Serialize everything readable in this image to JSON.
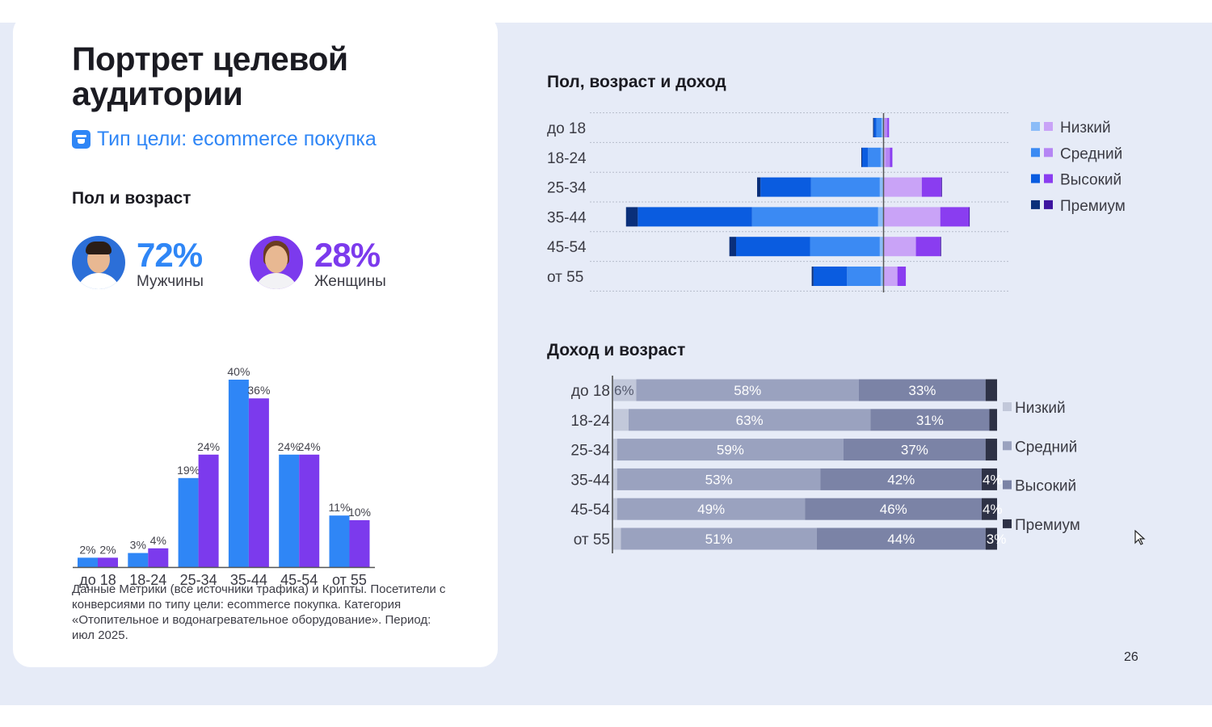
{
  "card": {
    "title": "Портрет целевой аудитории",
    "goal": "Тип цели: ecommerce покупка",
    "section_title": "Пол и возраст",
    "men": {
      "pct": "72%",
      "label": "Мужчины"
    },
    "women": {
      "pct": "28%",
      "label": "Женщины"
    },
    "note": "Данные Метрики (все источники трафика) и Крипты. Посетители с конверсиями по типу цели: ecommerce покупка. Категория «Отопительное и водонагревательное оборудование». Период: июл 2025."
  },
  "colors": {
    "men": "#2f86f6",
    "women": "#7c3aed",
    "bg": "#e6ebf7"
  },
  "page_number": "26",
  "chart_data": [
    {
      "type": "bar",
      "title": "",
      "categories": [
        "до 18",
        "18-24",
        "25-34",
        "35-44",
        "45-54",
        "от 55"
      ],
      "series": [
        {
          "values": [
            2,
            3,
            19,
            40,
            24,
            11
          ],
          "labels": [
            "2%",
            "3%",
            "19%",
            "40%",
            "24%",
            "11%"
          ],
          "color": "#2f86f6"
        },
        {
          "values": [
            2,
            4,
            24,
            36,
            24,
            10
          ],
          "labels": [
            "2%",
            "4%",
            "24%",
            "36%",
            "24%",
            "10%"
          ],
          "color": "#7c3aed"
        }
      ],
      "ylim": [
        0,
        40
      ]
    },
    {
      "type": "bar",
      "orientation": "horizontal",
      "stacked": "diverging",
      "title": "Пол, возраст и доход",
      "categories": [
        "до 18",
        "18-24",
        "25-34",
        "35-44",
        "45-54",
        "от 55"
      ],
      "legend": [
        "Низкий",
        "Средний",
        "Высокий",
        "Премиум"
      ],
      "legend_colors_men": [
        "#8bbcf8",
        "#3b8af3",
        "#0a5ce0",
        "#0a2f7a"
      ],
      "legend_colors_women": [
        "#c9a3f7",
        "#b585f4",
        "#8a3df0",
        "#3e14a0"
      ],
      "series": [
        {
          "name": "Низкий",
          "men": [
            0.2,
            0.3,
            0.4,
            0.6,
            0.4,
            0.3
          ],
          "women": [
            0.2,
            0.3,
            4.6,
            6.8,
            3.9,
            1.7
          ]
        },
        {
          "name": "Средний",
          "men": [
            0.6,
            1.5,
            8.2,
            15.0,
            8.3,
            4.0
          ],
          "women": [
            0.3,
            0.5,
            0.0,
            0.0,
            0.0,
            0.0
          ]
        },
        {
          "name": "Высокий",
          "men": [
            0.3,
            0.7,
            6.0,
            13.6,
            8.8,
            4.0
          ],
          "women": [
            0.2,
            0.3,
            2.3,
            3.4,
            2.9,
            1.0
          ]
        },
        {
          "name": "Премиум",
          "men": [
            0.1,
            0.1,
            0.4,
            1.4,
            0.8,
            0.2
          ],
          "women": [
            0.0,
            0.0,
            0.1,
            0.1,
            0.1,
            0.0
          ]
        }
      ],
      "xlim": [
        -30,
        16
      ],
      "legend_position": "right"
    },
    {
      "type": "bar",
      "orientation": "horizontal",
      "stacked": "percent",
      "title": "Доход и возраст",
      "categories": [
        "до 18",
        "18-24",
        "25-34",
        "35-44",
        "45-54",
        "от 55"
      ],
      "legend": [
        "Низкий",
        "Средний",
        "Высокий",
        "Премиум"
      ],
      "colors": [
        "#c2c8da",
        "#9aa2bf",
        "#7b83a6",
        "#2e3246"
      ],
      "series": [
        {
          "name": "Низкий",
          "values": [
            6,
            4,
            1,
            1,
            1,
            2
          ],
          "labels": [
            "6%",
            "",
            "",
            "",
            "",
            ""
          ]
        },
        {
          "name": "Средний",
          "values": [
            58,
            63,
            59,
            53,
            49,
            51
          ],
          "labels": [
            "58%",
            "63%",
            "59%",
            "53%",
            "49%",
            "51%"
          ]
        },
        {
          "name": "Высокий",
          "values": [
            33,
            31,
            37,
            42,
            46,
            44
          ],
          "labels": [
            "33%",
            "31%",
            "37%",
            "42%",
            "46%",
            "44%"
          ]
        },
        {
          "name": "Премиум",
          "values": [
            3,
            2,
            3,
            4,
            4,
            3
          ],
          "labels": [
            "",
            "",
            "",
            "4%",
            "4%",
            "3%"
          ]
        }
      ],
      "xlim": [
        0,
        100
      ],
      "legend_position": "right"
    }
  ]
}
